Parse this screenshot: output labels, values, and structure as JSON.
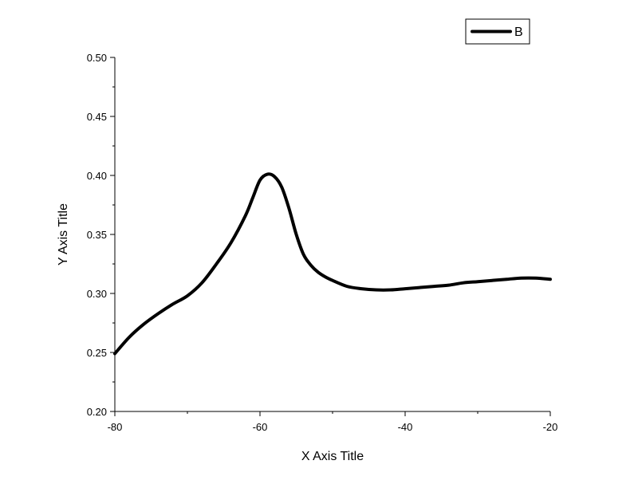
{
  "chart_data": {
    "type": "line",
    "xlabel": "X Axis Title",
    "ylabel": "Y Axis Title",
    "xlim": [
      -80,
      -20
    ],
    "ylim": [
      0.2,
      0.5
    ],
    "x_ticks": [
      -80,
      -60,
      -40,
      -20
    ],
    "x_tick_labels": [
      "-80",
      "-60",
      "-40",
      "-20"
    ],
    "y_ticks": [
      0.2,
      0.25,
      0.3,
      0.35,
      0.4,
      0.45,
      0.5
    ],
    "y_tick_labels": [
      "0.20",
      "0.25",
      "0.30",
      "0.35",
      "0.40",
      "0.45",
      "0.50"
    ],
    "grid": false,
    "legend_position": "top-right",
    "series": [
      {
        "name": "B",
        "color": "#000000",
        "x": [
          -80,
          -78,
          -76,
          -74,
          -72,
          -70,
          -68,
          -66,
          -64,
          -62,
          -61,
          -60,
          -59,
          -58,
          -57,
          -56,
          -55,
          -54,
          -53,
          -52,
          -51,
          -50,
          -48,
          -46,
          -44,
          -42,
          -40,
          -38,
          -36,
          -34,
          -32,
          -30,
          -28,
          -26,
          -24,
          -22,
          -20
        ],
        "y": [
          0.249,
          0.263,
          0.274,
          0.283,
          0.291,
          0.298,
          0.309,
          0.325,
          0.343,
          0.366,
          0.381,
          0.396,
          0.401,
          0.399,
          0.39,
          0.372,
          0.35,
          0.333,
          0.324,
          0.318,
          0.314,
          0.311,
          0.306,
          0.304,
          0.303,
          0.303,
          0.304,
          0.305,
          0.306,
          0.307,
          0.309,
          0.31,
          0.311,
          0.312,
          0.313,
          0.313,
          0.312
        ]
      }
    ]
  }
}
